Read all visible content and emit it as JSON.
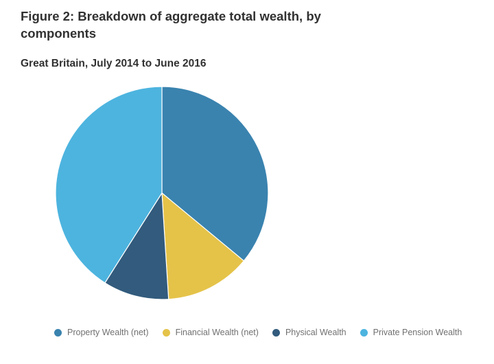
{
  "chart_data": {
    "type": "pie",
    "title": "Figure 2: Breakdown of aggregate total wealth, by components",
    "subtitle": "Great Britain, July 2014 to June 2016",
    "categories": [
      "Property Wealth (net)",
      "Financial Wealth (net)",
      "Physical Wealth",
      "Private Pension Wealth"
    ],
    "values": [
      36,
      13,
      10,
      41
    ],
    "colors": [
      "#3a83af",
      "#e5c349",
      "#325b7d",
      "#4db4df"
    ],
    "legend_position": "bottom"
  }
}
